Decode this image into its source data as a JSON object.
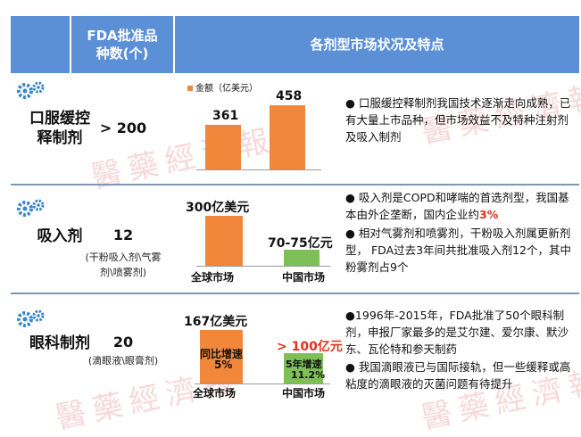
{
  "header": {
    "col1": "FDA批准品种数(个)",
    "col2": "各剂型市场状况及特点"
  },
  "rows": [
    {
      "category": "口服缓控释制剂",
      "category_line1": "口服缓控",
      "category_line2": "释制剂",
      "count": "> 200",
      "chart": {
        "legend": "金额（亿美元）",
        "values": [
          "361",
          "458"
        ]
      },
      "bullet1": "口服缓控释制剂我国技术逐渐走向成熟，已有大量上市品种，但市场效益不及特种注射剂及吸入制剂"
    },
    {
      "category": "吸入剂",
      "count": "12",
      "sub": "(干粉吸入剂\\气雾剂\\喷雾剂)",
      "chart": {
        "global_value": "300亿美元",
        "china_value": "70-75亿元",
        "global_label": "全球市场",
        "china_label": "中国市场"
      },
      "bullet1_a": "吸入剂是COPD和哮喘的首选剂型，我国基本由外企垄断，国内企业约",
      "bullet1_b": "3%",
      "bullet2": "相对气雾剂和喷雾剂，干粉吸入剂属更新剂型， FDA过去3年间共批准吸入剂12个，其中粉雾剂占9个"
    },
    {
      "category": "眼科制剂",
      "count": "20",
      "sub": "(滴眼液\\眼膏剂)",
      "chart": {
        "global_value": "167亿美元",
        "global_growth_label": "同比增速",
        "global_growth": "5%",
        "china_value": "> 100亿元",
        "china_growth_label": "5年增速",
        "china_growth": "11.2%",
        "global_label": "全球市场",
        "china_label": "中国市场"
      },
      "bullet1": "1996年-2015年，FDA批准了50个眼科制剂，申报厂家最多的是艾尔建、爱尔康、默沙东、瓦伦特和参天制药",
      "bullet2": "我国滴眼液已与国际接轨，但一些缓释或高粘度的滴眼液的灭菌问题有待提升"
    }
  ],
  "watermark": "醫藥經濟報",
  "colors": {
    "header": "#5b8fd6",
    "orange": "#f0873a",
    "green": "#7fbf57",
    "red": "#e0301e"
  },
  "icons": [
    "gears-icon"
  ]
}
